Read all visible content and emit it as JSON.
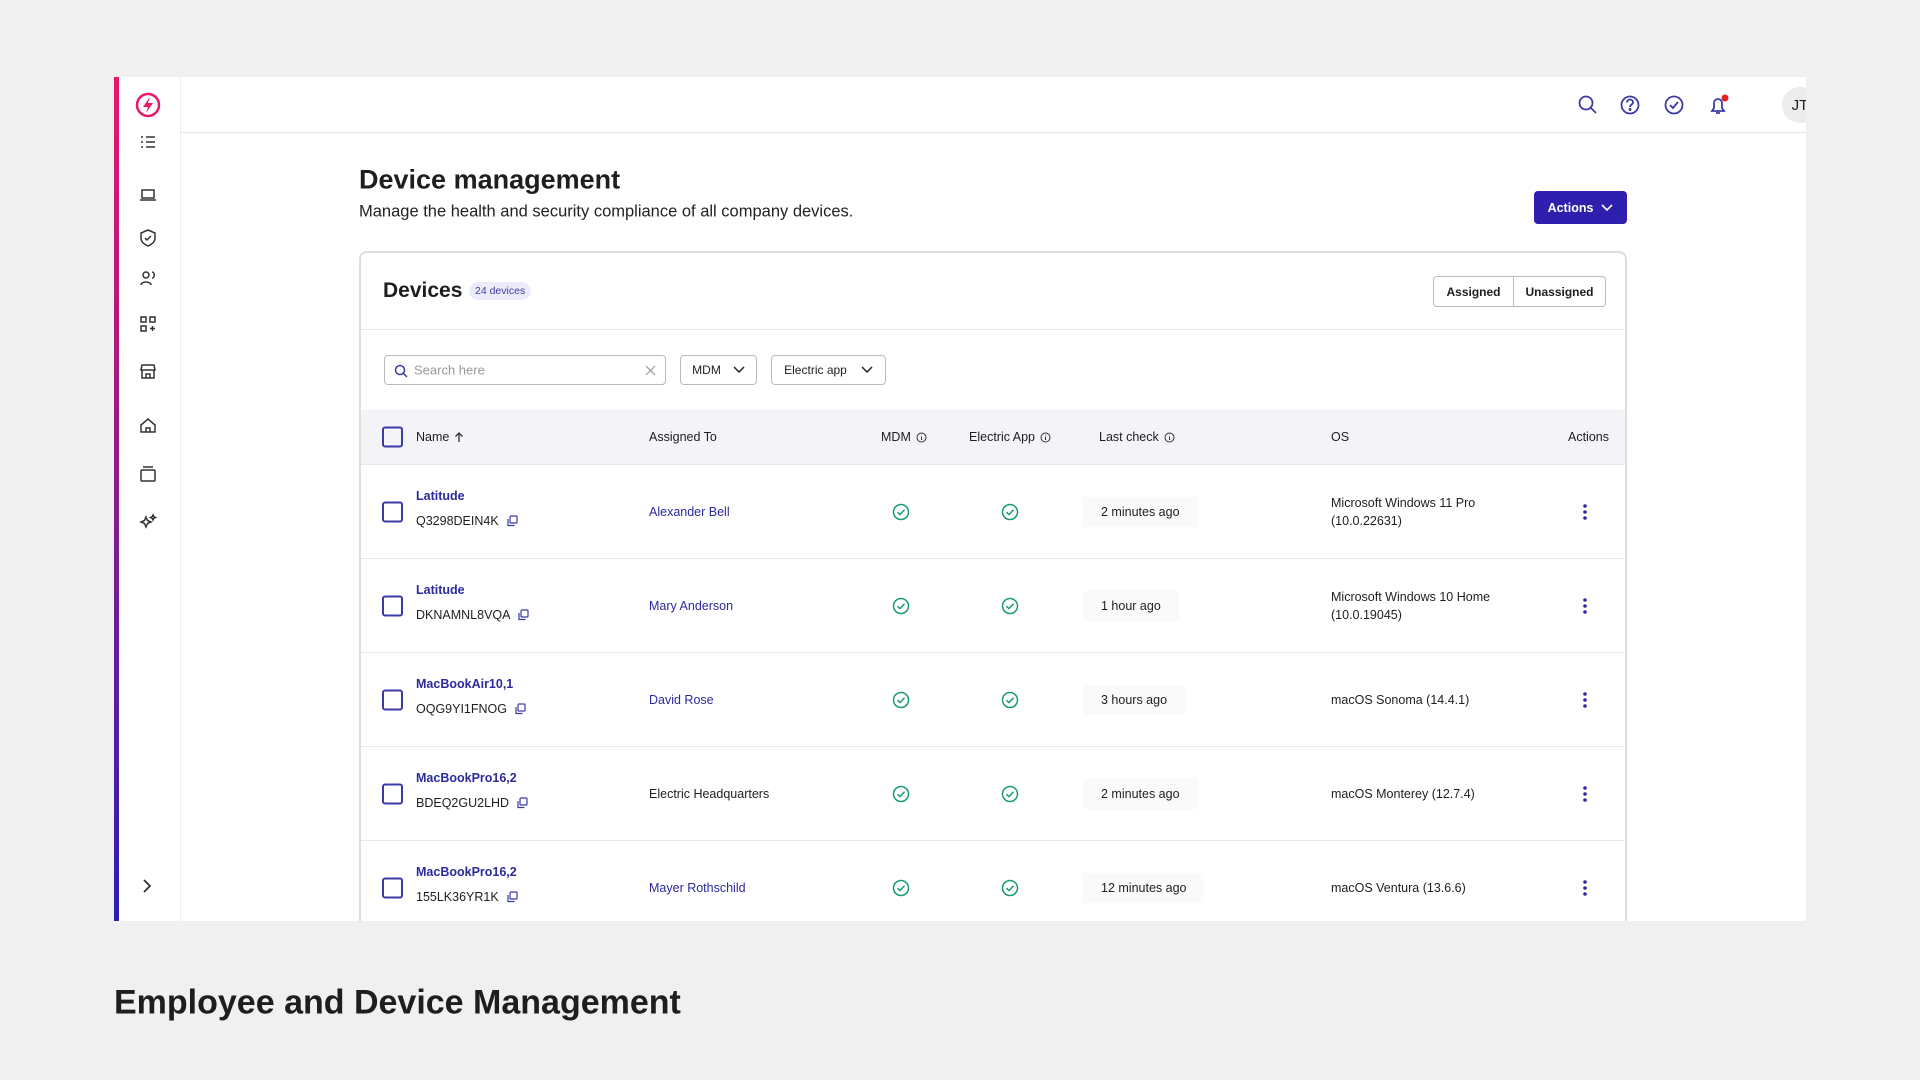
{
  "user_initials": "JT",
  "page": {
    "title": "Device management",
    "subtitle": "Manage the health and security compliance of all company devices.",
    "actions_button": "Actions"
  },
  "devices": {
    "title": "Devices",
    "count_badge": "24 devices",
    "toggle": [
      "Assigned",
      "Unassigned"
    ],
    "search_placeholder": "Search here",
    "filters": [
      "MDM",
      "Electric app"
    ],
    "columns": [
      "Name",
      "Assigned To",
      "MDM",
      "Electric App",
      "Last check",
      "OS",
      "Actions"
    ],
    "rows": [
      {
        "name": "Latitude",
        "serial": "Q3298DEIN4K",
        "assigned_to": "Alexander Bell",
        "assigned_color": "#2d2a9e",
        "last_check": "2 minutes ago",
        "os": "Microsoft Windows 11 Pro (10.0.22631)"
      },
      {
        "name": "Latitude",
        "serial": "DKNAMNL8VQA",
        "assigned_to": "Mary Anderson",
        "assigned_color": "#2d2a9e",
        "last_check": "1 hour ago",
        "os": "Microsoft Windows 10 Home (10.0.19045)"
      },
      {
        "name": "MacBookAir10,1",
        "serial": "OQG9YI1FNOG",
        "assigned_to": "David Rose",
        "assigned_color": "#2d2a9e",
        "last_check": "3 hours ago",
        "os": "macOS Sonoma (14.4.1)"
      },
      {
        "name": "MacBookPro16,2",
        "serial": "BDEQ2GU2LHD",
        "assigned_to": "Electric Headquarters",
        "assigned_color": "#222222",
        "last_check": "2 minutes ago",
        "os": "macOS Monterey (12.7.4)"
      },
      {
        "name": "MacBookPro16,2",
        "serial": "155LK36YR1K",
        "assigned_to": "Mayer Rothschild",
        "assigned_color": "#2d2a9e",
        "last_check": "12 minutes ago",
        "os": "macOS Ventura (13.6.6)"
      }
    ]
  },
  "caption": "Employee and Device Management"
}
